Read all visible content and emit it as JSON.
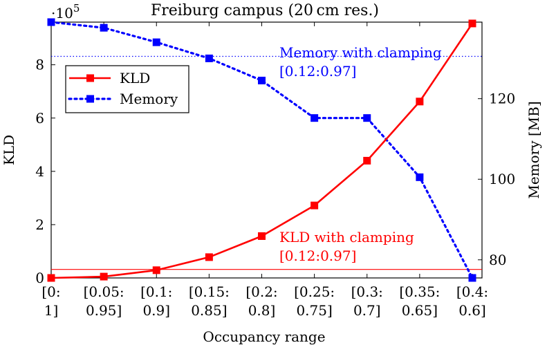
{
  "chart_data": {
    "type": "line",
    "title": "Freiburg campus (20 cm res.)",
    "xlabel": "Occupancy range",
    "ylabel_left": "KLD",
    "ylabel_right": "Memory [MB]",
    "y_left_multiplier": "·10",
    "y_left_multiplier_exp": "5",
    "y_left_lim": [
      0,
      9.6
    ],
    "y_left_ticks": [
      "0",
      "2",
      "4",
      "6",
      "8"
    ],
    "y_left_tick_values": [
      0,
      2,
      4,
      6,
      8
    ],
    "y_right_lim": [
      75.5,
      139
    ],
    "y_right_ticks": [
      "80",
      "100",
      "120"
    ],
    "y_right_tick_values": [
      80,
      100,
      120
    ],
    "grid": false,
    "legend_position": "top-left",
    "categories": [
      [
        "[0:",
        "1]"
      ],
      [
        "[0.05:",
        "0.95]"
      ],
      [
        "[0.1:",
        "0.9]"
      ],
      [
        "[0.15:",
        "0.85]"
      ],
      [
        "[0.2:",
        "0.8]"
      ],
      [
        "[0.25:",
        "0.75]"
      ],
      [
        "[0.3:",
        "0.7]"
      ],
      [
        "[0.35:",
        "0.65]"
      ],
      [
        "[0.4:",
        "0.6]"
      ]
    ],
    "series": [
      {
        "name": "KLD",
        "axis": "left",
        "color": "#ff0000",
        "style": "solid",
        "marker": "square",
        "values": [
          0.0,
          0.05,
          0.29,
          0.78,
          1.57,
          2.72,
          4.4,
          6.62,
          9.55
        ]
      },
      {
        "name": "Memory",
        "axis": "right",
        "color": "#0000ff",
        "style": "dotted",
        "marker": "square",
        "values": [
          139,
          137.6,
          134,
          130,
          124.5,
          115.2,
          115.2,
          100.5,
          75.5
        ]
      }
    ],
    "reference_lines": [
      {
        "axis": "right",
        "value": 130.5,
        "color": "#0000ff",
        "style": "dotted",
        "label_lines": [
          "Memory with clamping",
          "[0.12:0.97]"
        ]
      },
      {
        "axis": "left",
        "value": 0.32,
        "color": "#ff0000",
        "style": "solid",
        "label_lines": [
          "KLD with clamping",
          "[0.12:0.97]"
        ]
      }
    ]
  }
}
